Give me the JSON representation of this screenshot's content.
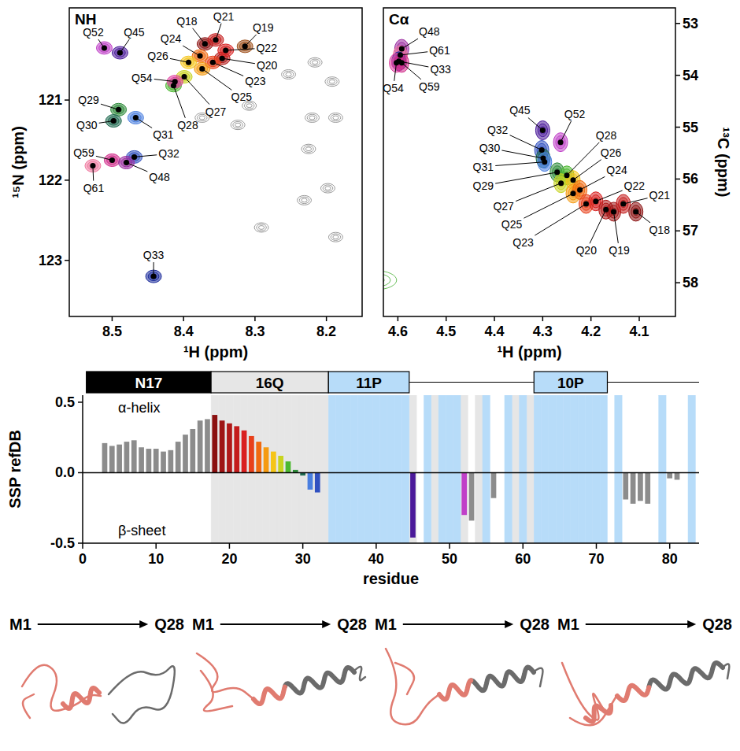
{
  "chart_data": [
    {
      "type": "scatter",
      "title": "NH",
      "x_label": "¹H (ppm)",
      "y_label": "¹⁵N (ppm)",
      "xlim": [
        8.56,
        8.15
      ],
      "ylim": [
        123.7,
        119.85
      ],
      "xticks": [
        8.5,
        8.4,
        8.3,
        8.2
      ],
      "yticks": [
        121,
        122,
        123
      ],
      "labels": [
        "Q52",
        "Q45",
        "Q18",
        "Q19",
        "Q20",
        "Q21",
        "Q22",
        "Q23",
        "Q24",
        "Q25",
        "Q26",
        "Q27",
        "Q28",
        "Q54",
        "Q29",
        "Q30",
        "Q31",
        "Q59",
        "Q32",
        "Q48",
        "Q61",
        "Q33"
      ],
      "x": [
        8.511,
        8.489,
        8.37,
        8.314,
        8.346,
        8.355,
        8.341,
        8.359,
        8.377,
        8.374,
        8.393,
        8.399,
        8.414,
        8.412,
        8.491,
        8.498,
        8.467,
        8.5,
        8.469,
        8.48,
        8.527,
        8.442
      ],
      "values": [
        120.35,
        120.41,
        120.3,
        120.33,
        120.48,
        120.25,
        120.38,
        120.53,
        120.45,
        120.61,
        120.53,
        120.71,
        120.82,
        120.77,
        121.12,
        121.26,
        121.22,
        121.75,
        121.71,
        121.78,
        121.82,
        123.2
      ],
      "colors": [
        "#c040c8",
        "#4b1a9a",
        "#8b1010",
        "#a0521e",
        "#b01818",
        "#c41c1c",
        "#d92020",
        "#e8401a",
        "#f06a10",
        "#f59a10",
        "#f5c518",
        "#c8d420",
        "#4cb830",
        "#e040a0",
        "#2e8b3a",
        "#1e6a50",
        "#4a7fe0",
        "#d02888",
        "#3050c0",
        "#9a2aa0",
        "#f07aa0",
        "#1a2a9a"
      ],
      "background": {
        "x": [
          8.253,
          8.216,
          8.192,
          8.22,
          8.187,
          8.308,
          8.324,
          8.225,
          8.198,
          8.231,
          8.291,
          8.187,
          8.374
        ],
        "values": [
          120.68,
          120.53,
          120.77,
          121.22,
          121.22,
          121.07,
          121.31,
          121.61,
          122.1,
          122.25,
          122.59,
          122.71,
          121.22
        ],
        "color": "#9a9a9a"
      }
    },
    {
      "type": "scatter",
      "title": "Cα",
      "x_label": "¹H (ppm)",
      "y2_label": "¹³C (ppm)",
      "axis": "y2",
      "xlim": [
        4.63,
        4.025
      ],
      "y2lim": [
        58.65,
        52.7
      ],
      "xticks": [
        4.6,
        4.5,
        4.4,
        4.3,
        4.2,
        4.1
      ],
      "y2ticks": [
        53,
        54,
        55,
        56,
        57,
        58
      ],
      "labels": [
        "Q48",
        "Q61",
        "Q33",
        "Q54",
        "Q59",
        "Q45",
        "Q52",
        "Q32",
        "Q30",
        "Q31",
        "Q29",
        "Q28",
        "Q27",
        "Q26",
        "Q25",
        "Q24",
        "Q23",
        "Q22",
        "Q20",
        "Q19",
        "Q21",
        "Q18"
      ],
      "x": [
        4.592,
        4.595,
        4.598,
        4.603,
        4.592,
        4.3,
        4.263,
        4.302,
        4.299,
        4.296,
        4.27,
        4.25,
        4.262,
        4.237,
        4.237,
        4.223,
        4.21,
        4.19,
        4.169,
        4.153,
        4.133,
        4.107
      ],
      "values": [
        53.49,
        53.61,
        53.73,
        53.76,
        53.76,
        55.06,
        55.29,
        55.44,
        55.6,
        55.67,
        55.87,
        55.93,
        56.08,
        56.02,
        56.28,
        56.21,
        56.48,
        56.43,
        56.59,
        56.63,
        56.48,
        56.63
      ],
      "colors": [
        "#9a2aa0",
        "#f07aa0",
        "#1a2a9a",
        "#e040a0",
        "#d02888",
        "#4b1a9a",
        "#c040c8",
        "#3050c0",
        "#1e6a50",
        "#4a7fe0",
        "#2e8b3a",
        "#4cb830",
        "#c8d420",
        "#f5c518",
        "#f59a10",
        "#f06a10",
        "#e8401a",
        "#d92020",
        "#b01818",
        "#9e1414",
        "#c41c1c",
        "#8b1010"
      ],
      "background": {
        "x": [
          4.645
        ],
        "values": [
          57.95
        ],
        "color": "#6abf5a"
      }
    },
    {
      "type": "bar",
      "x_label": "residue",
      "y_label": "SSP refDB",
      "xlim": [
        0,
        84
      ],
      "ylim": [
        -0.5,
        0.55
      ],
      "xticks": [
        0,
        10,
        20,
        30,
        40,
        50,
        60,
        70,
        80
      ],
      "yticks": [
        -0.5,
        {
          "value": 0,
          "label": "0.0"
        },
        0.5
      ],
      "x": [
        3,
        4,
        5,
        6,
        7,
        8,
        9,
        10,
        11,
        12,
        13,
        14,
        15,
        16,
        17,
        18,
        19,
        20,
        21,
        22,
        23,
        24,
        25,
        26,
        27,
        28,
        29,
        30,
        31,
        32,
        45,
        52,
        53,
        56,
        74,
        75,
        76,
        77,
        80,
        81
      ],
      "values": [
        0.21,
        0.19,
        0.2,
        0.22,
        0.23,
        0.18,
        0.17,
        0.17,
        0.15,
        0.16,
        0.22,
        0.27,
        0.31,
        0.37,
        0.38,
        0.41,
        0.37,
        0.35,
        0.33,
        0.3,
        0.26,
        0.22,
        0.18,
        0.15,
        0.12,
        0.08,
        0.02,
        -0.02,
        -0.12,
        -0.14,
        -0.46,
        -0.3,
        -0.34,
        -0.18,
        -0.19,
        -0.22,
        -0.2,
        -0.22,
        -0.04,
        -0.05
      ],
      "colors": [
        "#8c8c8c",
        "#8c8c8c",
        "#8c8c8c",
        "#8c8c8c",
        "#8c8c8c",
        "#8c8c8c",
        "#8c8c8c",
        "#8c8c8c",
        "#8c8c8c",
        "#8c8c8c",
        "#8c8c8c",
        "#8c8c8c",
        "#8c8c8c",
        "#8c8c8c",
        "#8c8c8c",
        "#8b1010",
        "#9e1414",
        "#b01818",
        "#c41c1c",
        "#d92020",
        "#e8401a",
        "#f06a10",
        "#f59a10",
        "#f5c518",
        "#c8d420",
        "#4cb830",
        "#2e8b3a",
        "#1e6a50",
        "#4a7fe0",
        "#3050c0",
        "#4b1a9a",
        "#c040c8",
        "#8c8c8c",
        "#8c8c8c",
        "#8c8c8c",
        "#8c8c8c",
        "#8c8c8c",
        "#8c8c8c",
        "#8c8c8c",
        "#8c8c8c"
      ],
      "annotations": [
        "α-helix",
        "β-sheet"
      ],
      "domains": [
        {
          "label": "N17",
          "start": 0.5,
          "end": 17.5,
          "color": "#000000"
        },
        {
          "label": "16Q",
          "start": 17.5,
          "end": 33.5,
          "color": "#e6e6e6"
        },
        {
          "label": "11P",
          "start": 33.5,
          "end": 44.5,
          "color": "#b7dcf9"
        },
        {
          "label": "10P",
          "start": 61.5,
          "end": 71.5,
          "color": "#b7dcf9"
        }
      ],
      "bands": [
        {
          "residues": [
            18,
            19,
            20,
            21,
            22,
            23,
            24,
            25,
            26,
            27,
            28,
            29,
            30,
            31,
            32,
            33,
            45,
            48,
            52,
            54,
            59,
            61
          ],
          "color": "#e6e6e6"
        },
        {
          "residues": [
            34,
            35,
            36,
            37,
            38,
            39,
            40,
            41,
            42,
            43,
            44,
            47,
            49,
            50,
            51,
            55,
            58,
            60,
            62,
            63,
            64,
            65,
            66,
            67,
            68,
            69,
            70,
            71,
            73,
            79,
            83
          ],
          "color": "#b7dcf9"
        }
      ]
    }
  ],
  "structures": [
    {
      "start": "M1",
      "end": "Q28"
    },
    {
      "start": "M1",
      "end": "Q28"
    },
    {
      "start": "M1",
      "end": "Q28"
    },
    {
      "start": "M1",
      "end": "Q28"
    }
  ]
}
